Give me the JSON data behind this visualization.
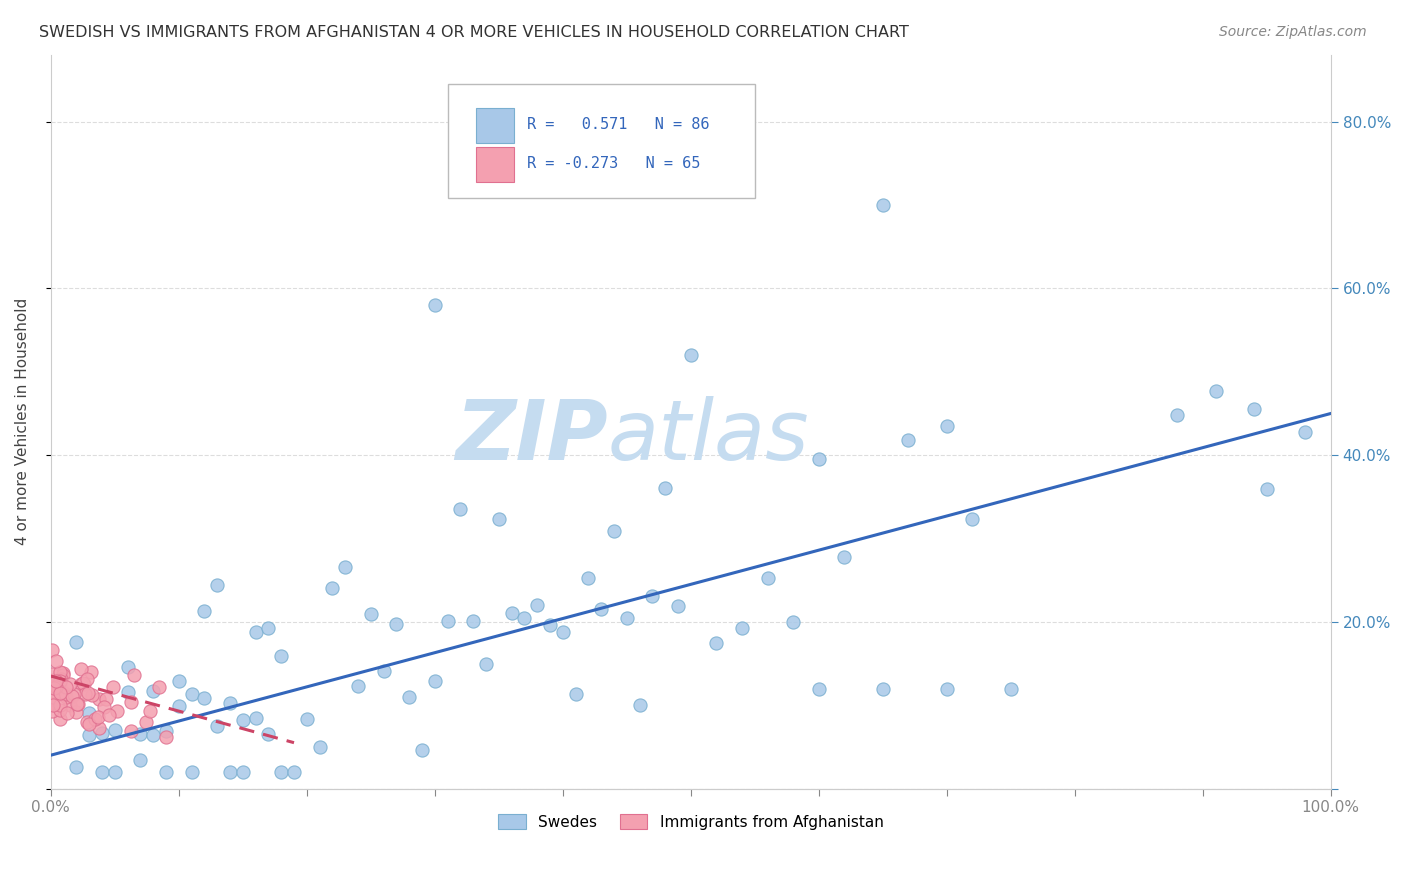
{
  "title": "SWEDISH VS IMMIGRANTS FROM AFGHANISTAN 4 OR MORE VEHICLES IN HOUSEHOLD CORRELATION CHART",
  "source": "Source: ZipAtlas.com",
  "ylabel": "4 or more Vehicles in Household",
  "xlim": [
    0.0,
    1.0
  ],
  "ylim": [
    0.0,
    0.88
  ],
  "xticks": [
    0.0,
    0.1,
    0.2,
    0.3,
    0.4,
    0.5,
    0.6,
    0.7,
    0.8,
    0.9,
    1.0
  ],
  "yticks": [
    0.0,
    0.2,
    0.4,
    0.6,
    0.8
  ],
  "blue_dot_color": "#A8C8E8",
  "blue_dot_edge": "#7AAFD0",
  "pink_dot_color": "#F4A0B0",
  "pink_dot_edge": "#E07090",
  "blue_line_color": "#3366BB",
  "pink_line_color": "#CC4466",
  "R_blue": 0.571,
  "N_blue": 86,
  "R_pink": -0.273,
  "N_pink": 65,
  "legend_label_blue": "Swedes",
  "legend_label_pink": "Immigrants from Afghanistan",
  "watermark_zip_color": "#C8DCF0",
  "watermark_atlas_color": "#C8DCF0"
}
